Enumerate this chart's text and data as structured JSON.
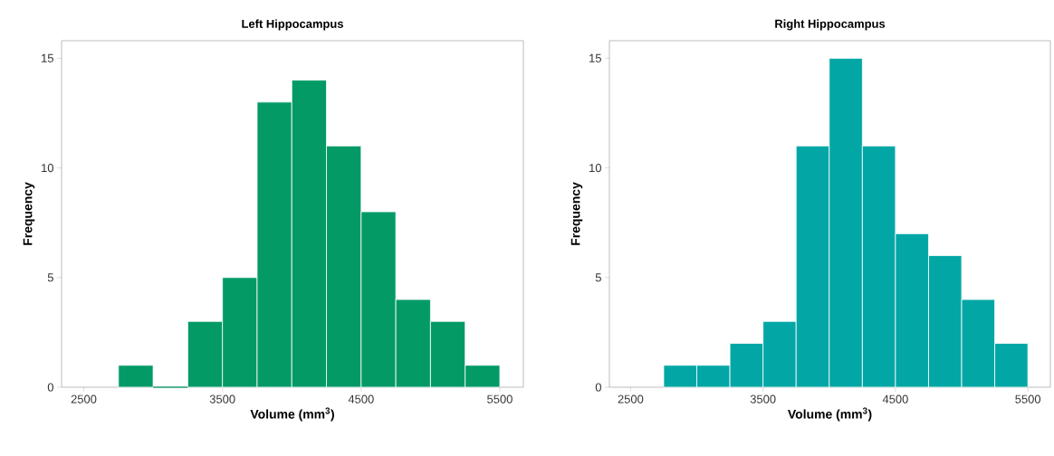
{
  "chart_data": [
    {
      "type": "histogram",
      "title": "Left Hippocampus",
      "xlabel": "Volume (mm$^{3}$)",
      "ylabel": "Frequency",
      "bins": [
        2750,
        3000,
        3250,
        3500,
        3750,
        4000,
        4250,
        4500,
        4750,
        5000,
        5250,
        5500
      ],
      "values": [
        1,
        0,
        3,
        5,
        13,
        14,
        11,
        8,
        4,
        3,
        1
      ],
      "color": "#039a66",
      "xlim": [
        2340,
        5670
      ],
      "ylim": [
        0,
        15.8
      ],
      "xticks": [
        2500,
        3500,
        4500,
        5500
      ],
      "yticks": [
        0,
        5,
        10,
        15
      ]
    },
    {
      "type": "histogram",
      "title": "Right Hippocampus",
      "xlabel": "Volume (mm$^{3}$)",
      "ylabel": "Frequency",
      "bins": [
        2750,
        3000,
        3250,
        3500,
        3750,
        4000,
        4250,
        4500,
        4750,
        5000,
        5250,
        5500
      ],
      "values": [
        1,
        1,
        2,
        3,
        11,
        15,
        11,
        7,
        6,
        4,
        2
      ],
      "color": "#02a7a5",
      "xlim": [
        2340,
        5670
      ],
      "ylim": [
        0,
        15.8
      ],
      "xticks": [
        2500,
        3500,
        4500,
        5500
      ],
      "yticks": [
        0,
        5,
        10,
        15
      ]
    }
  ]
}
